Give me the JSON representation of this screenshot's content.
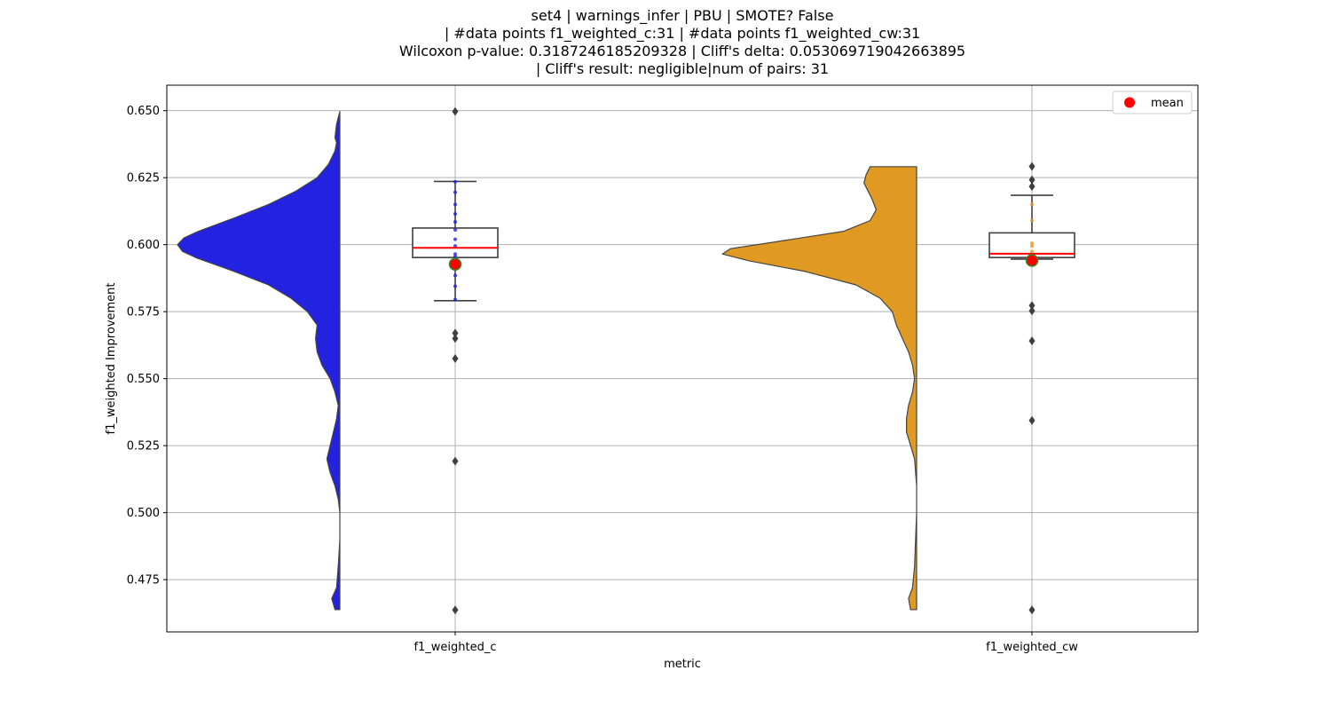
{
  "chart_data": {
    "type": "violin",
    "title_lines": [
      "set4 | warnings_infer | PBU | SMOTE? False",
      "| #data points f1_weighted_c:31 | #data points f1_weighted_cw:31",
      "Wilcoxon p-value: 0.3187246185209328 | Cliff's delta: 0.053069719042663895",
      "| Cliff's result: negligible|num of pairs: 31"
    ],
    "xlabel": "metric",
    "ylabel": "f1_weighted Improvement",
    "ylim": [
      0.4555,
      0.6595
    ],
    "yticks": [
      0.475,
      0.5,
      0.525,
      0.55,
      0.575,
      0.6,
      0.625,
      0.65
    ],
    "ytick_labels": [
      "0.475",
      "0.500",
      "0.525",
      "0.550",
      "0.575",
      "0.600",
      "0.625",
      "0.650"
    ],
    "categories": [
      "f1_weighted_c",
      "f1_weighted_cw"
    ],
    "grid": true,
    "legend": {
      "position": "top-right",
      "entries": [
        {
          "label": "mean",
          "color": "#ff0000"
        }
      ]
    },
    "series": [
      {
        "name": "f1_weighted_c",
        "color": "#2222e0",
        "range": [
          0.4638,
          0.6497
        ],
        "density": [
          [
            0.4638,
            0.03
          ],
          [
            0.468,
            0.05
          ],
          [
            0.472,
            0.02
          ],
          [
            0.48,
            0.01
          ],
          [
            0.49,
            0.0
          ],
          [
            0.5,
            0.0
          ],
          [
            0.505,
            0.01
          ],
          [
            0.51,
            0.03
          ],
          [
            0.515,
            0.06
          ],
          [
            0.52,
            0.08
          ],
          [
            0.525,
            0.06
          ],
          [
            0.53,
            0.04
          ],
          [
            0.535,
            0.02
          ],
          [
            0.54,
            0.01
          ],
          [
            0.545,
            0.03
          ],
          [
            0.55,
            0.06
          ],
          [
            0.555,
            0.11
          ],
          [
            0.56,
            0.14
          ],
          [
            0.565,
            0.15
          ],
          [
            0.57,
            0.14
          ],
          [
            0.575,
            0.2
          ],
          [
            0.58,
            0.3
          ],
          [
            0.585,
            0.44
          ],
          [
            0.59,
            0.65
          ],
          [
            0.595,
            0.88
          ],
          [
            0.5975,
            0.97
          ],
          [
            0.6,
            1.0
          ],
          [
            0.6025,
            0.96
          ],
          [
            0.605,
            0.87
          ],
          [
            0.61,
            0.65
          ],
          [
            0.615,
            0.44
          ],
          [
            0.62,
            0.27
          ],
          [
            0.625,
            0.14
          ],
          [
            0.63,
            0.07
          ],
          [
            0.635,
            0.03
          ],
          [
            0.638,
            0.02
          ],
          [
            0.64,
            0.03
          ],
          [
            0.645,
            0.02
          ],
          [
            0.6497,
            0.0
          ]
        ],
        "box": {
          "q1": 0.5952,
          "median": 0.5988,
          "q3": 0.6062,
          "whisker_low": 0.5791,
          "whisker_high": 0.6236
        },
        "mean": 0.5927,
        "outliers": [
          0.6497,
          0.567,
          0.565,
          0.5575,
          0.5192,
          0.4637
        ],
        "points": [
          0.6235,
          0.6195,
          0.615,
          0.6115,
          0.6085,
          0.6055,
          0.602,
          0.5995,
          0.5965,
          0.5955,
          0.5925,
          0.5885,
          0.5845,
          0.5795
        ]
      },
      {
        "name": "f1_weighted_cw",
        "color": "#e09a22",
        "range": [
          0.4638,
          0.6291
        ],
        "density": [
          [
            0.4638,
            0.03
          ],
          [
            0.468,
            0.04
          ],
          [
            0.472,
            0.02
          ],
          [
            0.48,
            0.01
          ],
          [
            0.5,
            0.0
          ],
          [
            0.51,
            0.0
          ],
          [
            0.52,
            0.01
          ],
          [
            0.525,
            0.03
          ],
          [
            0.53,
            0.05
          ],
          [
            0.535,
            0.05
          ],
          [
            0.54,
            0.04
          ],
          [
            0.545,
            0.02
          ],
          [
            0.55,
            0.01
          ],
          [
            0.555,
            0.02
          ],
          [
            0.56,
            0.04
          ],
          [
            0.565,
            0.07
          ],
          [
            0.57,
            0.1
          ],
          [
            0.575,
            0.12
          ],
          [
            0.58,
            0.18
          ],
          [
            0.585,
            0.3
          ],
          [
            0.59,
            0.55
          ],
          [
            0.594,
            0.83
          ],
          [
            0.5965,
            0.96
          ],
          [
            0.5985,
            0.92
          ],
          [
            0.601,
            0.7
          ],
          [
            0.605,
            0.36
          ],
          [
            0.609,
            0.23
          ],
          [
            0.613,
            0.2
          ],
          [
            0.617,
            0.22
          ],
          [
            0.62,
            0.24
          ],
          [
            0.623,
            0.26
          ],
          [
            0.626,
            0.25
          ],
          [
            0.6291,
            0.23
          ]
        ],
        "box": {
          "q1": 0.5952,
          "median": 0.5966,
          "q3": 0.6044,
          "whisker_low": 0.5946,
          "whisker_high": 0.6184
        },
        "mean": 0.5941,
        "outliers": [
          0.6292,
          0.6242,
          0.6217,
          0.5773,
          0.5753,
          0.5641,
          0.5344,
          0.4637
        ],
        "points": [
          0.615,
          0.609,
          0.6005,
          0.5995,
          0.5975,
          0.5955,
          0.5945
        ]
      }
    ]
  }
}
